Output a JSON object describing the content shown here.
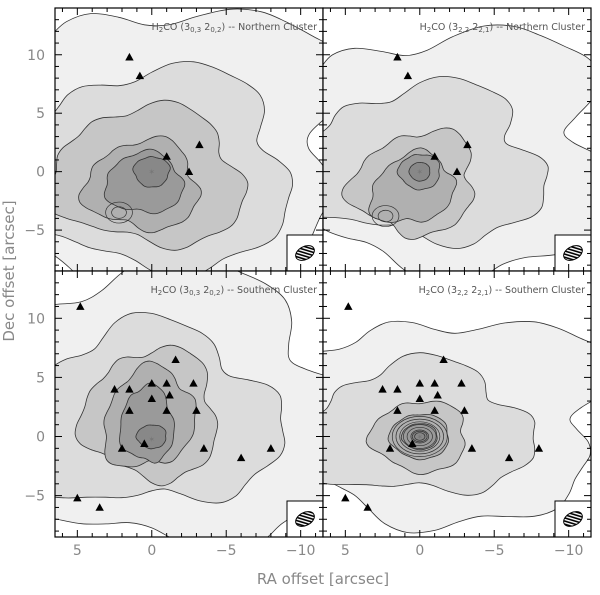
{
  "chart_data": [
    {
      "type": "contour",
      "panel": "top-left",
      "title_prefix": "H",
      "title_sub": "2",
      "title_mid": "CO (3",
      "title_sub_a": "0,3",
      "title_space": " 2",
      "title_sub_b": "0,2",
      "title_suffix": ") -- Northern Cluster",
      "peak": [
        0,
        0
      ],
      "secondary_peak": [
        2.2,
        -3.5
      ],
      "triangles": [
        [
          1.5,
          9.8
        ],
        [
          0.8,
          8.2
        ],
        [
          -1,
          1.3
        ],
        [
          -3.2,
          2.3
        ],
        [
          -2.5,
          0
        ]
      ]
    },
    {
      "type": "contour",
      "panel": "top-right",
      "title_prefix": "H",
      "title_sub": "2",
      "title_mid": "CO (3",
      "title_sub_a": "2,2",
      "title_space": " 2",
      "title_sub_b": "2,1",
      "title_suffix": ") -- Northern Cluster",
      "peak": [
        0,
        0
      ],
      "secondary_peak": [
        2.3,
        -3.8
      ],
      "triangles": [
        [
          1.5,
          9.8
        ],
        [
          0.8,
          8.2
        ],
        [
          -1,
          1.3
        ],
        [
          -3.2,
          2.3
        ],
        [
          -2.5,
          0
        ]
      ]
    },
    {
      "type": "contour",
      "panel": "bottom-left",
      "title_prefix": "H",
      "title_sub": "2",
      "title_mid": "CO (3",
      "title_sub_a": "0,3",
      "title_space": " 2",
      "title_sub_b": "0,2",
      "title_suffix": ") -- Southern Cluster",
      "peak": [
        0,
        -0.2
      ],
      "triangles": [
        [
          4.8,
          11
        ],
        [
          2.5,
          4
        ],
        [
          1.5,
          4
        ],
        [
          0,
          4.5
        ],
        [
          -1,
          4.5
        ],
        [
          -1.2,
          3.5
        ],
        [
          -1.6,
          6.5
        ],
        [
          -2.8,
          4.5
        ],
        [
          0,
          3.2
        ],
        [
          1.5,
          2.2
        ],
        [
          -1,
          2.2
        ],
        [
          -3,
          2.2
        ],
        [
          2,
          -1
        ],
        [
          0.5,
          -0.6
        ],
        [
          -3.5,
          -1
        ],
        [
          -6,
          -1.8
        ],
        [
          -8,
          -1
        ],
        [
          5,
          -5.2
        ],
        [
          3.5,
          -6
        ]
      ],
      "xlim": [
        6.5,
        -11.5
      ],
      "ylim": [
        -8.5,
        14
      ],
      "xticks": [
        5,
        0,
        -5,
        -10
      ],
      "yticks": [
        -5,
        0,
        5,
        10
      ]
    },
    {
      "type": "contour",
      "panel": "bottom-right",
      "title_prefix": "H",
      "title_sub": "2",
      "title_mid": "CO (3",
      "title_sub_a": "2,2",
      "title_space": " 2",
      "title_sub_b": "2,1",
      "title_suffix": ") -- Southern Cluster",
      "peak": [
        0,
        0
      ],
      "triangles": [
        [
          4.8,
          11
        ],
        [
          2.5,
          4
        ],
        [
          1.5,
          4
        ],
        [
          0,
          4.5
        ],
        [
          -1,
          4.5
        ],
        [
          -1.2,
          3.5
        ],
        [
          -1.6,
          6.5
        ],
        [
          -2.8,
          4.5
        ],
        [
          0,
          3.2
        ],
        [
          1.5,
          2.2
        ],
        [
          -1,
          2.2
        ],
        [
          -3,
          2.2
        ],
        [
          2,
          -1
        ],
        [
          0.5,
          -0.6
        ],
        [
          -3.5,
          -1
        ],
        [
          -6,
          -1.8
        ],
        [
          -8,
          -1
        ],
        [
          5,
          -5.2
        ],
        [
          3.5,
          -6
        ]
      ],
      "xlim": [
        6.5,
        -11.5
      ],
      "ylim": [
        -8.5,
        14
      ],
      "xticks": [
        5,
        0,
        -5,
        -10
      ],
      "yticks": [
        -5,
        0,
        5,
        10
      ]
    }
  ],
  "axes": {
    "xlabel": "RA offset [arcsec]",
    "ylabel": "Dec offset [arcsec]",
    "x_tick_labels": [
      "5",
      "0",
      "−5",
      "−10"
    ],
    "y_tick_labels": [
      "−5",
      "0",
      "5",
      "10"
    ],
    "xlim": [
      6.5,
      -11.5
    ],
    "ylim": [
      -8.5,
      14
    ]
  },
  "colors": {
    "level1": "#f0f0f0",
    "level2": "#dcdcdc",
    "level3": "#c6c6c6",
    "level4": "#b0b0b0",
    "level5": "#9a9a9a",
    "level6": "#888888",
    "line": "#333333"
  }
}
